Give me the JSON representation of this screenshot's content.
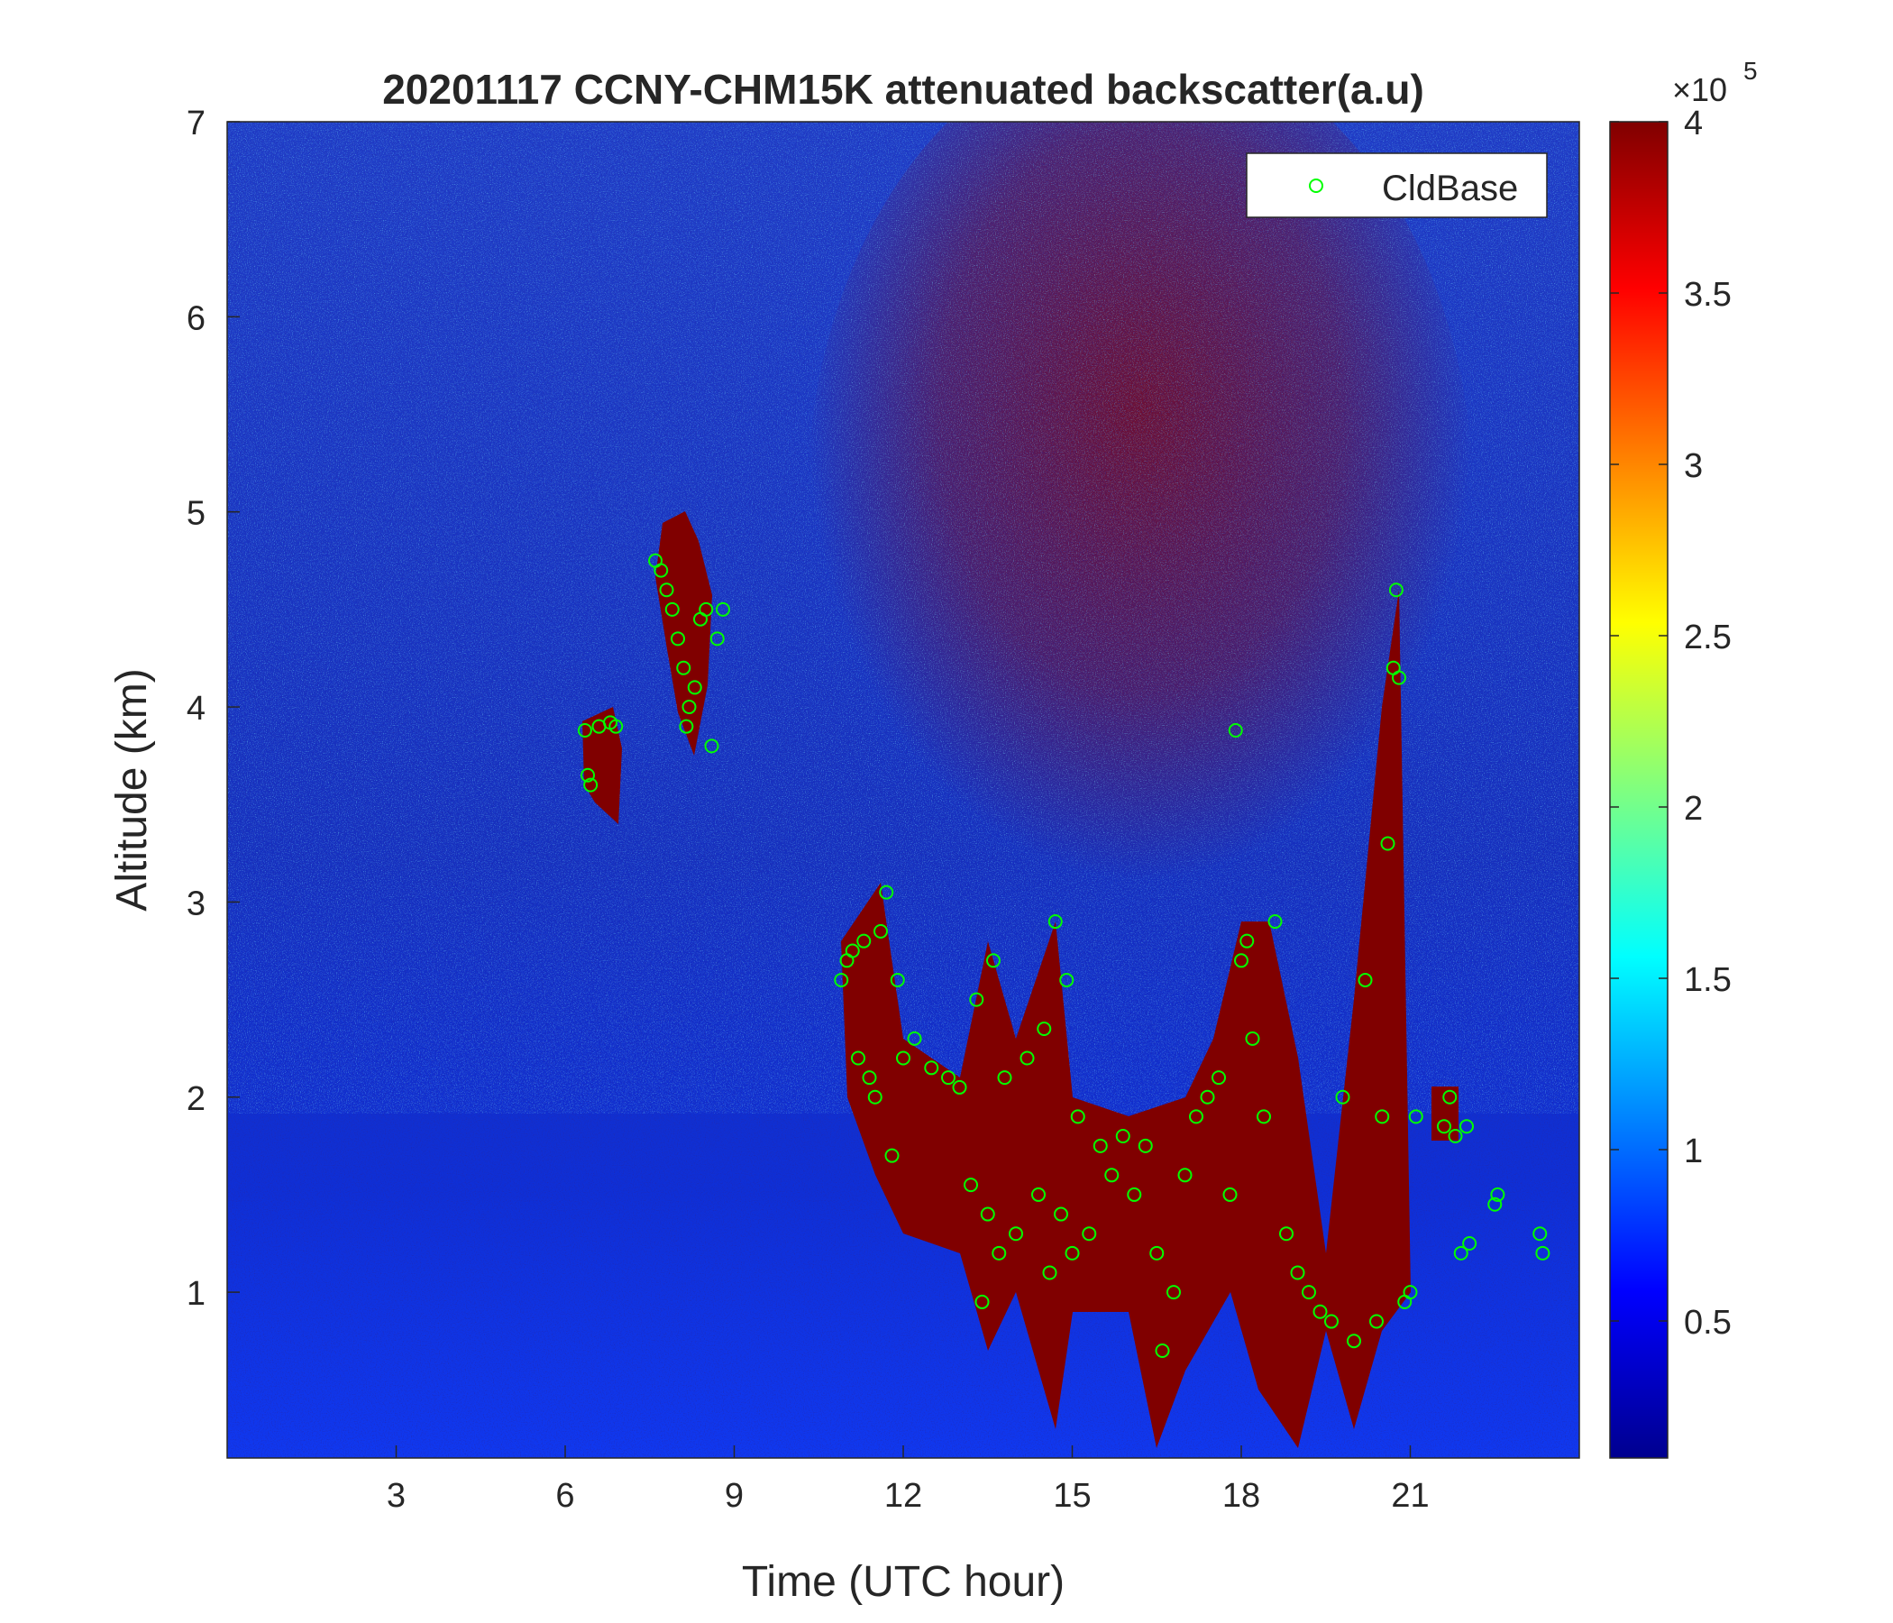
{
  "chart_data": {
    "type": "scatter",
    "title": "20201117 CCNY-CHM15K attenuated backscatter(a.u)",
    "x_label": "Time (UTC hour)",
    "y_label": "Altitude (km)",
    "xlim": [
      0,
      24
    ],
    "ylim": [
      0.15,
      7
    ],
    "xticks": [
      3,
      6,
      9,
      12,
      15,
      18,
      21
    ],
    "yticks": [
      1,
      2,
      3,
      4,
      5,
      6,
      7
    ],
    "legend": "upper right",
    "series": [
      {
        "name": "CldBase",
        "color": "#00ff00",
        "x": [
          6.35,
          6.4,
          6.45,
          6.6,
          6.8,
          6.9,
          7.6,
          7.7,
          7.8,
          7.9,
          8.0,
          8.1,
          8.15,
          8.2,
          8.3,
          8.4,
          8.5,
          8.6,
          8.7,
          8.8,
          10.9,
          11.0,
          11.1,
          11.2,
          11.3,
          11.4,
          11.5,
          11.6,
          11.7,
          11.8,
          11.9,
          12.0,
          12.2,
          12.5,
          12.8,
          13.0,
          13.2,
          13.3,
          13.4,
          13.5,
          13.6,
          13.7,
          13.8,
          14.0,
          14.2,
          14.4,
          14.5,
          14.6,
          14.7,
          14.8,
          14.9,
          15.0,
          15.1,
          15.3,
          15.5,
          15.7,
          15.9,
          16.1,
          16.3,
          16.5,
          16.6,
          16.8,
          17.0,
          17.2,
          17.4,
          17.6,
          17.8,
          17.9,
          18.0,
          18.1,
          18.2,
          18.4,
          18.6,
          18.8,
          19.0,
          19.2,
          19.4,
          19.6,
          19.8,
          20.0,
          20.2,
          20.4,
          20.5,
          20.6,
          20.7,
          20.75,
          20.8,
          20.9,
          21.0,
          21.1,
          21.6,
          21.7,
          21.8,
          21.9,
          22.0,
          22.05,
          22.5,
          22.55,
          23.3,
          23.35
        ],
        "y": [
          3.88,
          3.65,
          3.6,
          3.9,
          3.92,
          3.9,
          4.75,
          4.7,
          4.6,
          4.5,
          4.35,
          4.2,
          3.9,
          4.0,
          4.1,
          4.45,
          4.5,
          3.8,
          4.35,
          4.5,
          2.6,
          2.7,
          2.75,
          2.2,
          2.8,
          2.1,
          2.0,
          2.85,
          3.05,
          1.7,
          2.6,
          2.2,
          2.3,
          2.15,
          2.1,
          2.05,
          1.55,
          2.5,
          0.95,
          1.4,
          2.7,
          1.2,
          2.1,
          1.3,
          2.2,
          1.5,
          2.35,
          1.1,
          2.9,
          1.4,
          2.6,
          1.2,
          1.9,
          1.3,
          1.75,
          1.6,
          1.8,
          1.5,
          1.75,
          1.2,
          0.7,
          1.0,
          1.6,
          1.9,
          2.0,
          2.1,
          1.5,
          3.88,
          2.7,
          2.8,
          2.3,
          1.9,
          2.9,
          1.3,
          1.1,
          1.0,
          0.9,
          0.85,
          2.0,
          0.75,
          2.6,
          0.85,
          1.9,
          3.3,
          4.2,
          4.6,
          4.15,
          0.95,
          1.0,
          1.9,
          1.85,
          2.0,
          1.8,
          1.2,
          1.85,
          1.25,
          1.45,
          1.5,
          1.3,
          1.2
        ]
      }
    ],
    "colorbar": {
      "colormap": "jet",
      "clim": [
        0.1,
        4
      ],
      "ticks": [
        0.5,
        1,
        1.5,
        2,
        2.5,
        3,
        3.5,
        4
      ],
      "exponent_base": "×10",
      "exponent": "5"
    }
  }
}
